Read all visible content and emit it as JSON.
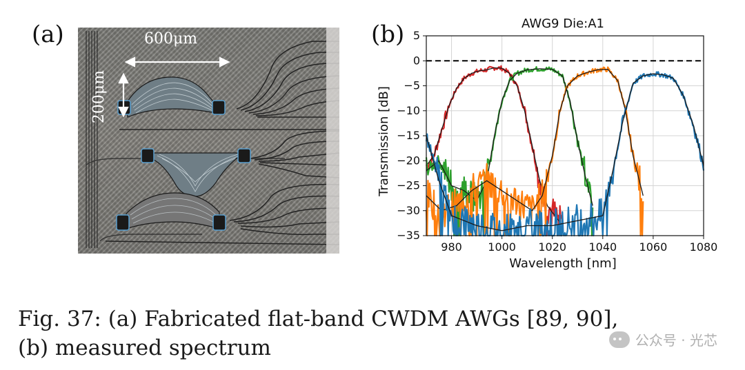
{
  "figure": {
    "panel_a_label": "(a)",
    "panel_b_label": "(b)",
    "scale_horizontal": "600μm",
    "scale_vertical": "200μm",
    "caption_line1": "Fig. 37: (a) Fabricated flat-band CWDM AWGs [89, 90],",
    "caption_line2": "(b) measured spectrum",
    "watermark": "公众号 · 光芯"
  },
  "chart_data": {
    "type": "line",
    "title": "AWG9 Die:A1",
    "xlabel": "Wavelength [nm]",
    "ylabel": "Transmission [dB]",
    "xlim": [
      970,
      1080
    ],
    "ylim": [
      -35,
      5
    ],
    "xticks": [
      980,
      1000,
      1020,
      1040,
      1060,
      1080
    ],
    "yticks": [
      5,
      0,
      -5,
      -10,
      -15,
      -20,
      -25,
      -30,
      -35
    ],
    "grid": true,
    "reference_line": {
      "y": 0,
      "style": "dashed",
      "color": "#000000"
    },
    "series": [
      {
        "color": "#d62728",
        "x": [
          970,
          973,
          976,
          979,
          982,
          985,
          988,
          991,
          994,
          997,
          1000,
          1003,
          1006,
          1009,
          1012,
          1015,
          1018,
          1021,
          1024
        ],
        "values": [
          -21,
          -19,
          -14,
          -9,
          -5.5,
          -3.5,
          -2.5,
          -2,
          -1.8,
          -1.4,
          -1.5,
          -2.5,
          -5,
          -10,
          -17,
          -24,
          -29,
          -31,
          -33
        ]
      },
      {
        "color": "#2ca02c",
        "x": [
          970,
          975,
          980,
          985,
          990,
          994,
          997,
          1000,
          1003,
          1006,
          1010,
          1015,
          1020,
          1024,
          1027,
          1030,
          1033,
          1036
        ],
        "values": [
          -22,
          -20,
          -25,
          -26,
          -28,
          -24,
          -15,
          -8,
          -4,
          -2.5,
          -1.8,
          -1.6,
          -1.7,
          -3,
          -8,
          -16,
          -23,
          -29
        ]
      },
      {
        "color": "#ff7f0e",
        "x": [
          970,
          976,
          982,
          988,
          994,
          1000,
          1006,
          1012,
          1016,
          1020,
          1023,
          1026,
          1030,
          1034,
          1038,
          1042,
          1046,
          1049,
          1052,
          1056
        ],
        "values": [
          -27,
          -30,
          -29,
          -26,
          -24,
          -26,
          -28,
          -30,
          -27,
          -19,
          -10,
          -5,
          -3,
          -2.3,
          -1.8,
          -1.7,
          -4,
          -10,
          -19,
          -27
        ]
      },
      {
        "color": "#1f77b4",
        "x": [
          970,
          975,
          980,
          990,
          1000,
          1010,
          1020,
          1030,
          1040,
          1044,
          1048,
          1052,
          1056,
          1060,
          1064,
          1068,
          1072,
          1076,
          1080
        ],
        "values": [
          -15,
          -24,
          -31,
          -33,
          -34,
          -33,
          -33,
          -32,
          -31,
          -22,
          -12,
          -4.5,
          -3,
          -2.6,
          -2.8,
          -3.5,
          -7,
          -13,
          -21
        ]
      }
    ],
    "fit_color": "#1a1a1a"
  }
}
